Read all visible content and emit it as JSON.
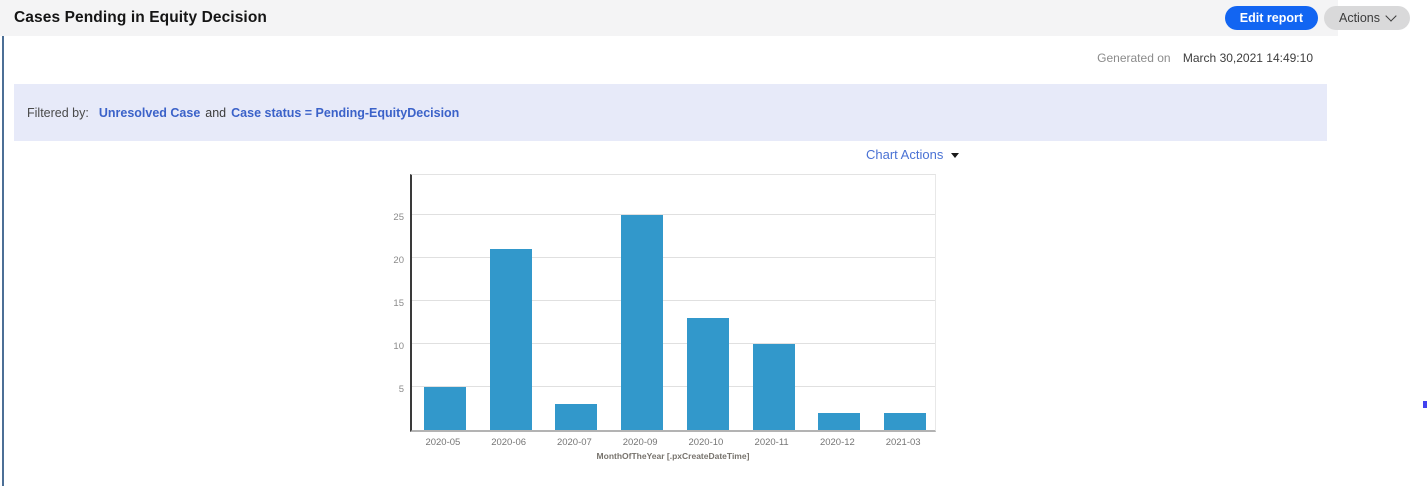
{
  "header": {
    "title": "Cases Pending in Equity Decision",
    "buttons": {
      "edit_report": "Edit report",
      "actions": "Actions"
    }
  },
  "generated_on": {
    "label": "Generated on",
    "value": "March 30,2021 14:49:10"
  },
  "filter_bar": {
    "label": "Filtered by:",
    "filter1": "Unresolved Case",
    "conjunction": "and",
    "filter2": "Case status = Pending-EquityDecision"
  },
  "chart_actions_label": "Chart Actions",
  "chart_data": {
    "type": "bar",
    "categories": [
      "2020-05",
      "2020-06",
      "2020-07",
      "2020-09",
      "2020-10",
      "2020-11",
      "2020-12",
      "2021-03"
    ],
    "values": [
      5,
      21,
      3,
      25,
      13,
      10,
      2,
      2
    ],
    "title": "",
    "xlabel": "MonthOfTheYear [.pxCreateDateTime]",
    "ylabel": "",
    "ylim": [
      0,
      30
    ],
    "yticks": [
      5,
      10,
      15,
      20,
      25
    ],
    "bar_color": "#3298cb",
    "grid": true,
    "legend": false
  },
  "colors": {
    "primary_button": "#1265f2",
    "secondary_button": "#d9d9da",
    "filter_bar_bg": "#e7eaf9",
    "filter_link": "#3b62c9",
    "chart_actions_link": "#4a72d4",
    "bar": "#3298cb",
    "left_stripe": "#4c6f96",
    "header_bg": "#f4f4f5"
  }
}
